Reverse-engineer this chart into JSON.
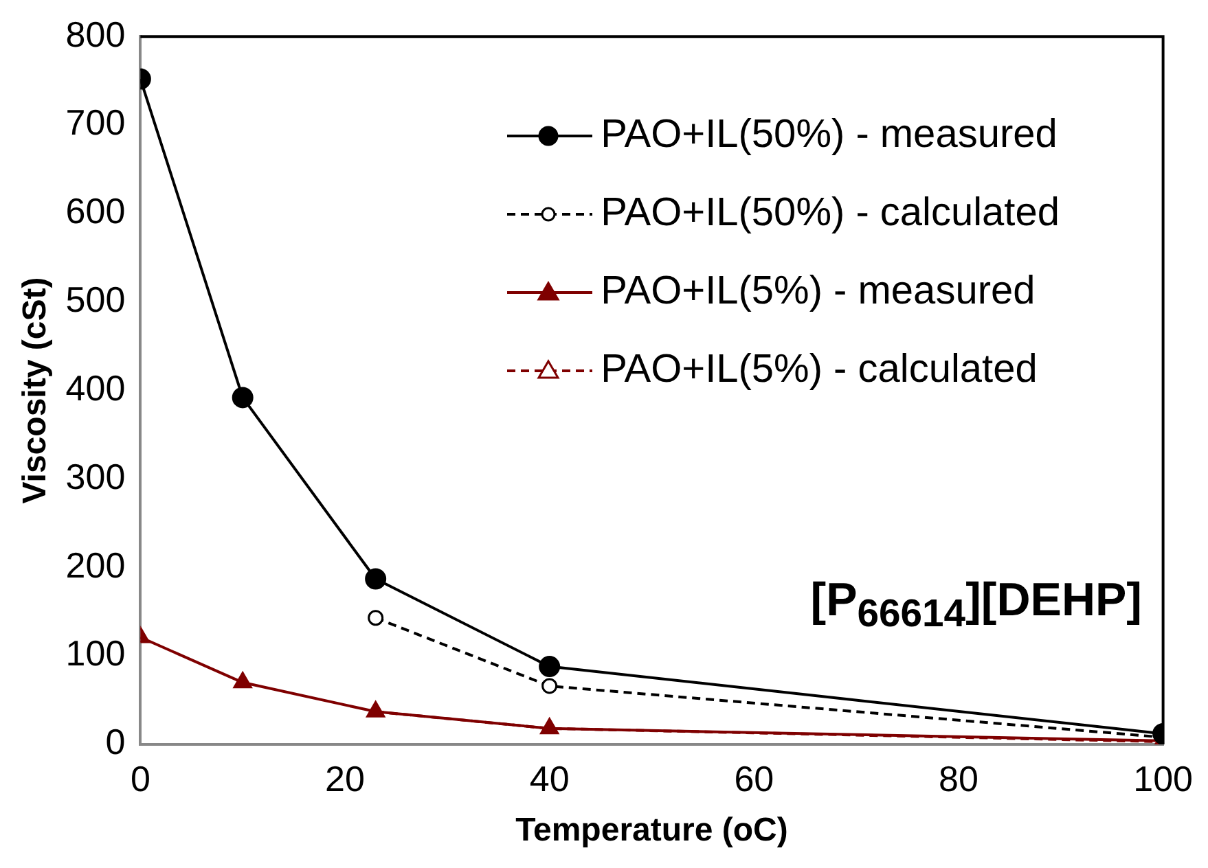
{
  "chart_data": {
    "type": "line",
    "xlabel": "Temperature (oC)",
    "ylabel": "Viscosity (cSt)",
    "xlim": [
      0,
      100
    ],
    "xticks": [
      0,
      20,
      40,
      60,
      80,
      100
    ],
    "ylim": [
      0,
      800
    ],
    "yticks": [
      0,
      100,
      200,
      300,
      400,
      500,
      600,
      700,
      800
    ],
    "grid": false,
    "legend": "top right",
    "annotations": [
      "[P$_{66614}$][DEHP]"
    ],
    "series": [
      {
        "name": "PAO+IL(50%) - measured",
        "color": "#000000",
        "x": [
          0,
          10,
          23,
          40,
          100
        ],
        "values": [
          752,
          392,
          187,
          88,
          12
        ],
        "marker": "circle",
        "line_style": "solid"
      },
      {
        "name": "PAO+IL(50%) - calculated",
        "color": "#000000",
        "x": [
          23,
          40,
          100
        ],
        "values": [
          143,
          66,
          8
        ],
        "marker": "circle",
        "line_style": "dashed"
      },
      {
        "name": "PAO+IL(5%) - measured",
        "color": "#7f0000",
        "x": [
          0,
          10,
          23,
          40,
          100
        ],
        "values": [
          121,
          70,
          37,
          18,
          4
        ],
        "marker": "triangle",
        "line_style": "solid"
      },
      {
        "name": "PAO+IL(5%) - calculated",
        "color": "#7f0000",
        "x": [
          23,
          40,
          100
        ],
        "values": [
          37,
          18,
          3
        ],
        "marker": "triangle",
        "line_style": "dashed"
      }
    ]
  }
}
